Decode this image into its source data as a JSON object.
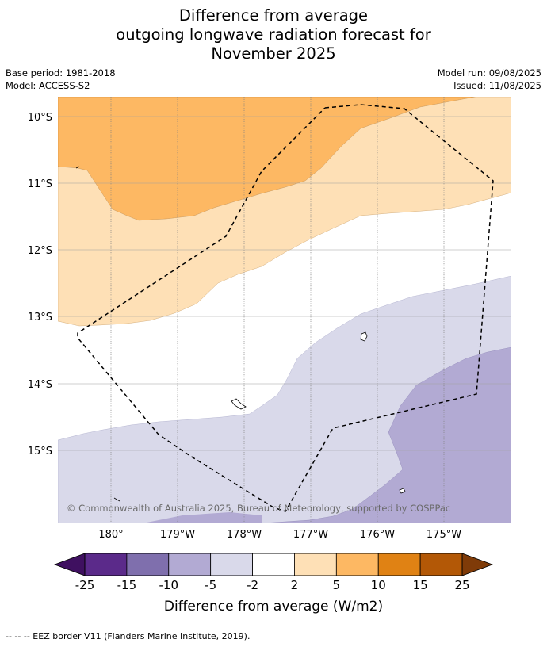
{
  "title": {
    "line1": "Difference from average",
    "line2": "outgoing longwave radiation forecast for",
    "line3": "November 2025"
  },
  "meta": {
    "base_period": "Base period: 1981-2018",
    "model": "Model: ACCESS-S2",
    "model_run": "Model run: 09/08/2025",
    "issued": "Issued: 11/08/2025"
  },
  "map": {
    "lat_labels": [
      "10°S",
      "11°S",
      "12°S",
      "13°S",
      "14°S",
      "15°S"
    ],
    "lon_labels": [
      "180°",
      "179°W",
      "178°W",
      "177°W",
      "176°W",
      "175°W"
    ],
    "copyright": "© Commonwealth of Australia 2025, Bureau of Meteorology, supported by COSPPac"
  },
  "colorbar": {
    "ticks": [
      "-25",
      "-15",
      "-10",
      "-5",
      "-2",
      "2",
      "5",
      "10",
      "15",
      "25"
    ],
    "colors": [
      "#3f1060",
      "#5b2a8a",
      "#7f6fad",
      "#b2aad3",
      "#d9d9ea",
      "#ffffff",
      "#fee0b6",
      "#fdb863",
      "#e08214",
      "#b35806",
      "#7f3b08"
    ],
    "label": "Difference from average (W/m2)"
  },
  "legend": {
    "eez_text": "--  --  -- EEZ border V11 (Flanders Marine Institute, 2019)."
  }
}
